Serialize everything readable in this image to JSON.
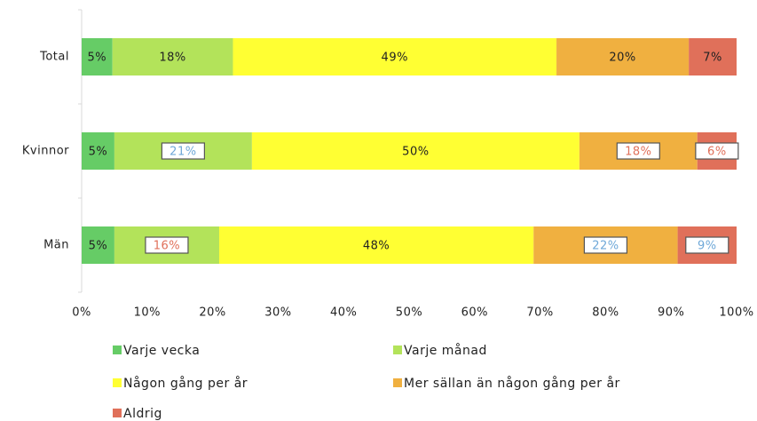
{
  "chart_data": {
    "type": "stacked-bar-horizontal",
    "categories": [
      "Total",
      "Kvinnor",
      "Män"
    ],
    "series": [
      {
        "name": "Varje vecka",
        "color": "#66cc66",
        "values": [
          4.7,
          5,
          5
        ],
        "value_labels": [
          "5%",
          "5%",
          "5%"
        ],
        "label_colors": [
          "#222",
          "#222",
          "#222"
        ],
        "label_boxed": [
          false,
          false,
          false
        ]
      },
      {
        "name": "Varje månad",
        "color": "#b3e35a",
        "values": [
          18.4,
          21,
          16
        ],
        "value_labels": [
          "18%",
          "21%",
          "16%"
        ],
        "label_colors": [
          "#222",
          "#6fa8d8",
          "#e0705a"
        ],
        "label_boxed": [
          false,
          true,
          true
        ]
      },
      {
        "name": "Någon gång per år",
        "color": "#ffff33",
        "values": [
          49.4,
          50,
          48
        ],
        "value_labels": [
          "49%",
          "50%",
          "48%"
        ],
        "label_colors": [
          "#222",
          "#222",
          "#222"
        ],
        "label_boxed": [
          false,
          false,
          false
        ]
      },
      {
        "name": "Mer sällan än någon gång per år",
        "color": "#f0b040",
        "values": [
          20.2,
          18,
          22
        ],
        "value_labels": [
          "20%",
          "18%",
          "22%"
        ],
        "label_colors": [
          "#222",
          "#e0705a",
          "#6fa8d8"
        ],
        "label_boxed": [
          false,
          true,
          true
        ]
      },
      {
        "name": "Aldrig",
        "color": "#e0705a",
        "values": [
          7.3,
          6,
          9
        ],
        "value_labels": [
          "7%",
          "6%",
          "9%"
        ],
        "label_colors": [
          "#222",
          "#e0705a",
          "#6fa8d8"
        ],
        "label_boxed": [
          false,
          true,
          true
        ]
      }
    ],
    "xlim": [
      0,
      100
    ],
    "xticks": [
      {
        "value": 0,
        "label": "0%"
      },
      {
        "value": 10,
        "label": "10%"
      },
      {
        "value": 20,
        "label": "20%"
      },
      {
        "value": 30,
        "label": "30%"
      },
      {
        "value": 40,
        "label": "40%"
      },
      {
        "value": 50,
        "label": "50%"
      },
      {
        "value": 60,
        "label": "60%"
      },
      {
        "value": 70,
        "label": "70%"
      },
      {
        "value": 80,
        "label": "80%"
      },
      {
        "value": 90,
        "label": "90%"
      },
      {
        "value": 100,
        "label": "100%"
      }
    ],
    "grid": false,
    "legend": "bottom"
  }
}
